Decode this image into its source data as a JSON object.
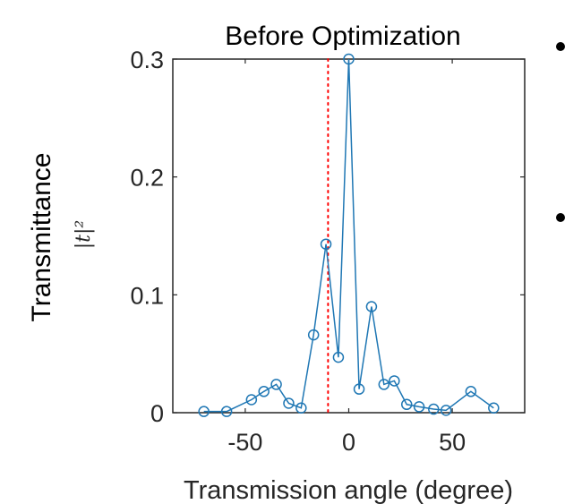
{
  "chart_data": {
    "type": "line",
    "title": "Before Optimization",
    "xlabel": "Transmission angle (degree)",
    "ylabel": "Transmittance",
    "ylabel_sub": "|t|²",
    "xlim": [
      -85,
      85
    ],
    "ylim": [
      0,
      0.3
    ],
    "xticks": [
      -50,
      0,
      50
    ],
    "yticks": [
      0,
      0.1,
      0.2,
      0.3
    ],
    "xtick_labels": [
      "-50",
      "0",
      "50"
    ],
    "ytick_labels": [
      "0",
      "0.1",
      "0.2",
      "0.3"
    ],
    "grid": false,
    "reference_line": {
      "x": -10,
      "color": "#ff0000",
      "style": "dotted"
    },
    "series": [
      {
        "color": "#1f77b4",
        "marker": "circle",
        "x": [
          -70,
          -59,
          -47,
          -41,
          -35,
          -29,
          -23,
          -17,
          -11,
          -5,
          0,
          5,
          11,
          17,
          22,
          28,
          34,
          41,
          47,
          59,
          70
        ],
        "y": [
          0.001,
          0.001,
          0.011,
          0.018,
          0.024,
          0.008,
          0.004,
          0.066,
          0.143,
          0.047,
          0.3,
          0.02,
          0.09,
          0.024,
          0.027,
          0.007,
          0.005,
          0.003,
          0.002,
          0.018,
          0.004
        ]
      }
    ]
  },
  "bullets": [
    "",
    ""
  ],
  "colors": {
    "series": "#1f77b4",
    "reference": "#ff0000",
    "axis": "#262626"
  }
}
